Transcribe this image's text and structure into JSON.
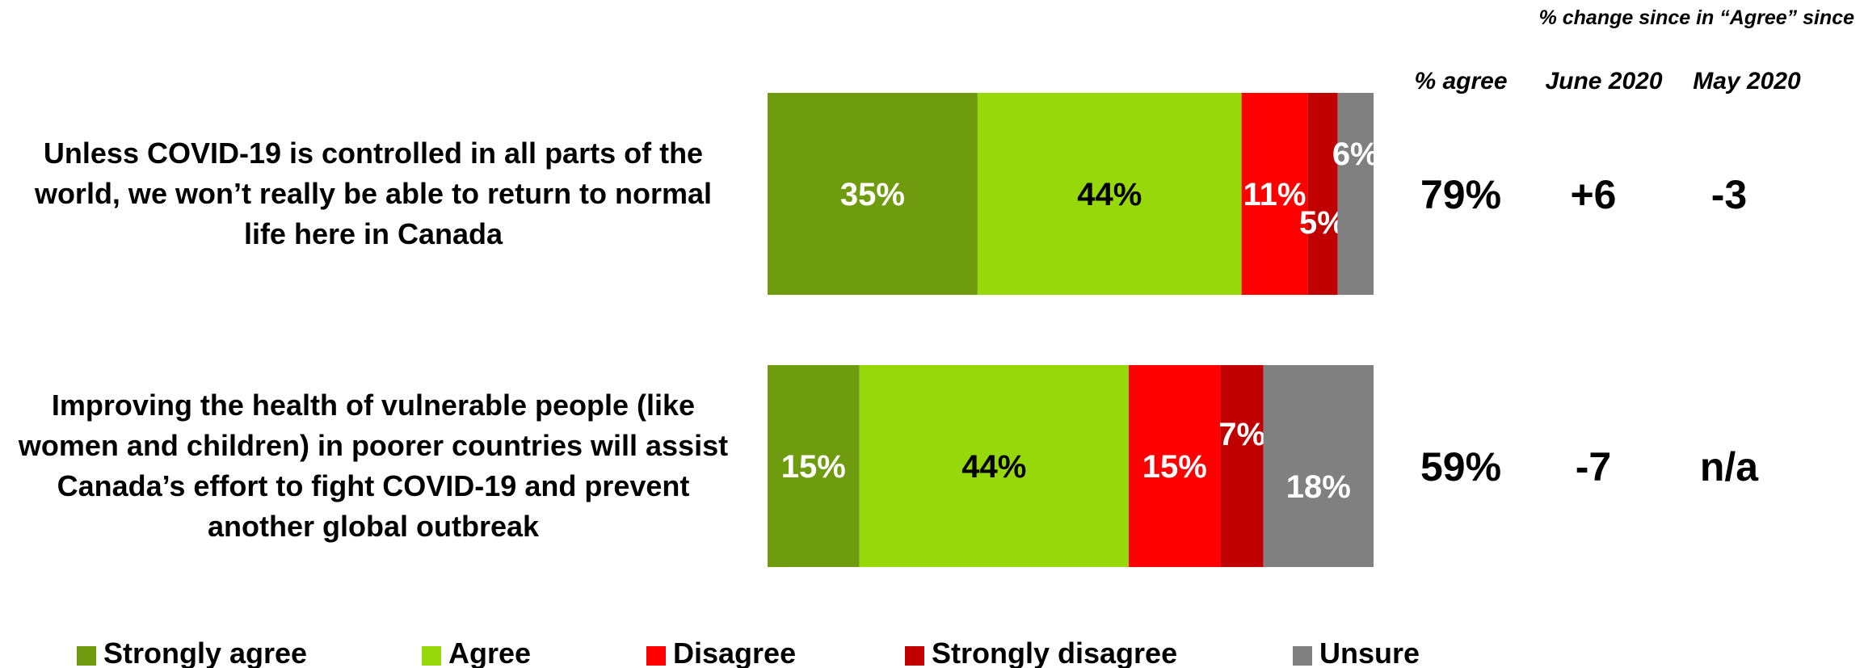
{
  "chart_data": {
    "type": "bar",
    "orientation": "horizontal",
    "stacked": true,
    "categories": [
      "Unless COVID-19 is controlled in all parts of the world, we won’t really be able to return to normal life here in Canada",
      "Improving the health of vulnerable people (like women and children) in poorer countries will assist Canada’s effort to fight COVID-19 and prevent another global outbreak"
    ],
    "category_lines": [
      [
        "Unless COVID-19 is controlled in all parts of the",
        "world, we won’t really be able to return to normal",
        "life here in Canada"
      ],
      [
        "Improving the health of vulnerable people (like",
        "women and children) in poorer countries will assist",
        "Canada’s effort to fight COVID-19 and prevent",
        "another global outbreak"
      ]
    ],
    "series": [
      {
        "name": "Strongly agree",
        "color": "#6E9C0E",
        "values": [
          35,
          15
        ],
        "labels": [
          "35%",
          "15%"
        ]
      },
      {
        "name": "Agree",
        "color": "#97D80A",
        "values": [
          44,
          44
        ],
        "labels": [
          "44%",
          "44%"
        ]
      },
      {
        "name": "Disagree",
        "color": "#FF0000",
        "values": [
          11,
          15
        ],
        "labels": [
          "11%",
          "15%"
        ]
      },
      {
        "name": "Strongly disagree",
        "color": "#C00000",
        "values": [
          5,
          7
        ],
        "labels": [
          "5%",
          "7%"
        ]
      },
      {
        "name": "Unsure",
        "color": "#808080",
        "values": [
          6,
          18
        ],
        "labels": [
          "6%",
          "18%"
        ]
      }
    ],
    "legend_position": "bottom",
    "grid": false
  },
  "table": {
    "top_header": "% change since in “Agree” since",
    "columns": [
      "% agree",
      "June 2020",
      "May 2020"
    ],
    "rows": [
      [
        "79%",
        "+6",
        "-3"
      ],
      [
        "59%",
        "-7",
        "n/a"
      ]
    ]
  }
}
